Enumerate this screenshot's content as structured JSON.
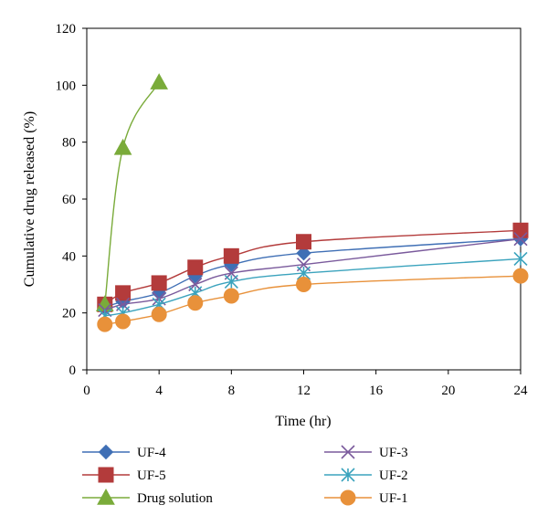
{
  "chart_data": {
    "type": "line",
    "title": "",
    "xlabel": "Time (hr)",
    "ylabel": "Cumulative drug released (%)",
    "xlim": [
      0,
      24
    ],
    "ylim": [
      0,
      120
    ],
    "x_ticks": [
      0,
      4,
      8,
      12,
      16,
      20,
      24
    ],
    "y_ticks": [
      0,
      20,
      40,
      60,
      80,
      100,
      120
    ],
    "grid": false,
    "legend_position": "bottom",
    "series": [
      {
        "name": "UF-4",
        "color": "#3f6fb5",
        "marker": "diamond",
        "x": [
          1,
          2,
          4,
          6,
          8,
          12,
          24
        ],
        "y": [
          22,
          24,
          27,
          33,
          37,
          41,
          46
        ]
      },
      {
        "name": "UF-5",
        "color": "#b33b3b",
        "marker": "square",
        "x": [
          1,
          2,
          4,
          6,
          8,
          12,
          24
        ],
        "y": [
          23,
          27,
          30.5,
          36,
          40,
          45,
          49
        ]
      },
      {
        "name": "Drug solution",
        "color": "#7aab3a",
        "marker": "triangle",
        "x": [
          1,
          2,
          4
        ],
        "y": [
          23,
          78,
          101
        ]
      },
      {
        "name": "UF-3",
        "color": "#7a5a9c",
        "marker": "x",
        "x": [
          1,
          2,
          4,
          6,
          8,
          12,
          24
        ],
        "y": [
          21,
          23,
          25,
          30,
          34,
          37,
          46
        ]
      },
      {
        "name": "UF-2",
        "color": "#3ba3bd",
        "marker": "asterisk",
        "x": [
          1,
          2,
          4,
          6,
          8,
          12,
          24
        ],
        "y": [
          19,
          20,
          23,
          27,
          31,
          34,
          39
        ]
      },
      {
        "name": "UF-1",
        "color": "#e8913a",
        "marker": "circle",
        "x": [
          1,
          2,
          4,
          6,
          8,
          12,
          24
        ],
        "y": [
          16,
          17,
          19.5,
          23.5,
          26,
          30,
          33
        ]
      }
    ]
  }
}
